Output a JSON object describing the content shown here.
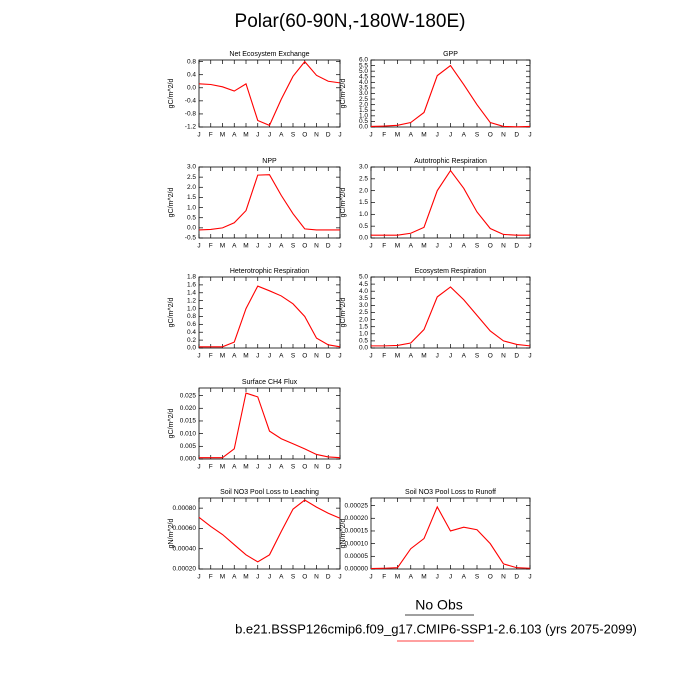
{
  "page": {
    "title": "Polar(60-90N,-180W-180E)",
    "obs_note": "No Obs",
    "caption": "b.e21.BSSP126cmip6.f09_g17.CMIP6-SSP1-2.6.103 (yrs 2075-2099)"
  },
  "chart_data": [
    {
      "type": "line",
      "title": "Net Ecosystem Exchange",
      "y_label": "gC/m^2/d",
      "color": "#ff0000",
      "categories": [
        "J",
        "F",
        "M",
        "A",
        "M",
        "J",
        "J",
        "A",
        "S",
        "O",
        "N",
        "D",
        "J"
      ],
      "values": [
        0.12,
        0.1,
        0.03,
        -0.1,
        0.12,
        -1.0,
        -1.15,
        -0.35,
        0.35,
        0.8,
        0.38,
        0.2,
        0.15
      ],
      "ylim": [
        -1.2,
        0.85
      ],
      "yticks": [
        -1.2,
        -0.8,
        -0.4,
        {
          "value": 0,
          "label": "0.0"
        },
        0.4,
        0.8
      ]
    },
    {
      "type": "line",
      "title": "GPP",
      "y_label": "gC/m^2/d",
      "color": "#ff0000",
      "categories": [
        "J",
        "F",
        "M",
        "A",
        "M",
        "J",
        "J",
        "A",
        "S",
        "O",
        "N",
        "D",
        "J"
      ],
      "values": [
        0.05,
        0.08,
        0.15,
        0.4,
        1.3,
        4.6,
        5.5,
        3.8,
        2.0,
        0.4,
        0.05,
        0.02,
        0.05
      ],
      "ylim": [
        0,
        6
      ],
      "yticks": [
        {
          "value": 0,
          "label": "0.0"
        },
        0.5,
        {
          "value": 1,
          "label": "1.0"
        },
        1.5,
        {
          "value": 2,
          "label": "2.0"
        },
        2.5,
        {
          "value": 3,
          "label": "3.0"
        },
        3.5,
        {
          "value": 4,
          "label": "4.0"
        },
        4.5,
        {
          "value": 5,
          "label": "5.0"
        },
        5.5,
        {
          "value": 6,
          "label": "6.0"
        }
      ]
    },
    {
      "type": "line",
      "title": "NPP",
      "y_label": "gC/m^2/d",
      "color": "#ff0000",
      "categories": [
        "J",
        "F",
        "M",
        "A",
        "M",
        "J",
        "J",
        "A",
        "S",
        "O",
        "N",
        "D",
        "J"
      ],
      "values": [
        -0.1,
        -0.08,
        0,
        0.25,
        0.85,
        2.6,
        2.62,
        1.6,
        0.7,
        -0.05,
        -0.1,
        -0.1,
        -0.1
      ],
      "ylim": [
        -0.5,
        3
      ],
      "yticks": [
        -0.5,
        {
          "value": 0,
          "label": "0.0"
        },
        0.5,
        {
          "value": 1,
          "label": "1.0"
        },
        1.5,
        {
          "value": 2,
          "label": "2.0"
        },
        2.5,
        {
          "value": 3,
          "label": "3.0"
        }
      ]
    },
    {
      "type": "line",
      "title": "Autotrophic Respiration",
      "y_label": "gC/m^2/d",
      "color": "#ff0000",
      "categories": [
        "J",
        "F",
        "M",
        "A",
        "M",
        "J",
        "J",
        "A",
        "S",
        "O",
        "N",
        "D",
        "J"
      ],
      "values": [
        0.12,
        0.12,
        0.12,
        0.2,
        0.45,
        2.0,
        2.85,
        2.1,
        1.1,
        0.4,
        0.15,
        0.12,
        0.12
      ],
      "ylim": [
        0,
        3
      ],
      "yticks": [
        {
          "value": 0,
          "label": "0.0"
        },
        0.5,
        {
          "value": 1,
          "label": "1.0"
        },
        1.5,
        {
          "value": 2,
          "label": "2.0"
        },
        2.5,
        {
          "value": 3,
          "label": "3.0"
        }
      ]
    },
    {
      "type": "line",
      "title": "Heterotrophic Respiration",
      "y_label": "gC/m^2/d",
      "color": "#ff0000",
      "categories": [
        "J",
        "F",
        "M",
        "A",
        "M",
        "J",
        "J",
        "A",
        "S",
        "O",
        "N",
        "D",
        "J"
      ],
      "values": [
        0.03,
        0.03,
        0.03,
        0.15,
        1.0,
        1.57,
        1.45,
        1.32,
        1.12,
        0.8,
        0.25,
        0.08,
        0.03
      ],
      "ylim": [
        0,
        1.8
      ],
      "yticks": [
        {
          "value": 0,
          "label": "0.0"
        },
        0.2,
        0.4,
        0.6,
        0.8,
        {
          "value": 1,
          "label": "1.0"
        },
        1.2,
        1.4,
        1.6,
        1.8
      ]
    },
    {
      "type": "line",
      "title": "Ecosystem Respiration",
      "y_label": "gC/m^2/d",
      "color": "#ff0000",
      "categories": [
        "J",
        "F",
        "M",
        "A",
        "M",
        "J",
        "J",
        "A",
        "S",
        "O",
        "N",
        "D",
        "J"
      ],
      "values": [
        0.15,
        0.15,
        0.18,
        0.35,
        1.3,
        3.6,
        4.3,
        3.4,
        2.3,
        1.2,
        0.5,
        0.25,
        0.15
      ],
      "ylim": [
        0,
        5
      ],
      "yticks": [
        {
          "value": 0,
          "label": "0.0"
        },
        0.5,
        {
          "value": 1,
          "label": "1.0"
        },
        1.5,
        {
          "value": 2,
          "label": "2.0"
        },
        2.5,
        {
          "value": 3,
          "label": "3.0"
        },
        3.5,
        {
          "value": 4,
          "label": "4.0"
        },
        4.5,
        {
          "value": 5,
          "label": "5.0"
        }
      ]
    },
    {
      "type": "line",
      "title": "Surface CH4 Flux",
      "y_label": "gC/m^2/d",
      "color": "#ff0000",
      "categories": [
        "J",
        "F",
        "M",
        "A",
        "M",
        "J",
        "J",
        "A",
        "S",
        "O",
        "N",
        "D",
        "J"
      ],
      "values": [
        0.0005,
        0.0005,
        0.0005,
        0.004,
        0.026,
        0.0245,
        0.011,
        0.008,
        0.006,
        0.004,
        0.0018,
        0.0008,
        0.0005
      ],
      "ylim": [
        0,
        0.028
      ],
      "yticks": [
        {
          "value": 0,
          "label": "0.000"
        },
        0.005,
        {
          "value": 0.01,
          "label": "0.010"
        },
        0.015,
        {
          "value": 0.02,
          "label": "0.020"
        },
        0.025
      ]
    },
    {
      "type": "line",
      "title": "Soil NO3 Pool Loss to Leaching",
      "y_label": "gN/m^2/d",
      "color": "#ff0000",
      "categories": [
        "J",
        "F",
        "M",
        "A",
        "M",
        "J",
        "J",
        "A",
        "S",
        "O",
        "N",
        "D",
        "J"
      ],
      "values": [
        0.00071,
        0.00062,
        0.00054,
        0.00044,
        0.00034,
        0.00027,
        0.00034,
        0.00057,
        0.00079,
        0.00088,
        0.00081,
        0.00075,
        0.0007
      ],
      "ylim": [
        0.0002,
        0.0009
      ],
      "yticks": [
        {
          "value": 0.0002,
          "label": "0.00020"
        },
        {
          "value": 0.0004,
          "label": "0.00040"
        },
        {
          "value": 0.0006,
          "label": "0.00060"
        },
        {
          "value": 0.0008,
          "label": "0.00080"
        }
      ]
    },
    {
      "type": "line",
      "title": "Soil NO3 Pool Loss to Runoff",
      "y_label": "gN/m^2/d",
      "color": "#ff0000",
      "categories": [
        "J",
        "F",
        "M",
        "A",
        "M",
        "J",
        "J",
        "A",
        "S",
        "O",
        "N",
        "D",
        "J"
      ],
      "values": [
        2e-06,
        3e-06,
        5e-06,
        8e-05,
        0.00012,
        0.000245,
        0.00015,
        0.000165,
        0.000155,
        0.0001,
        2e-05,
        5e-06,
        3e-06
      ],
      "ylim": [
        0,
        0.00028
      ],
      "yticks": [
        {
          "value": 0,
          "label": "0.00000"
        },
        5e-05,
        {
          "value": 0.0001,
          "label": "0.00010"
        },
        0.00015,
        {
          "value": 0.0002,
          "label": "0.00020"
        },
        0.00025
      ]
    }
  ]
}
